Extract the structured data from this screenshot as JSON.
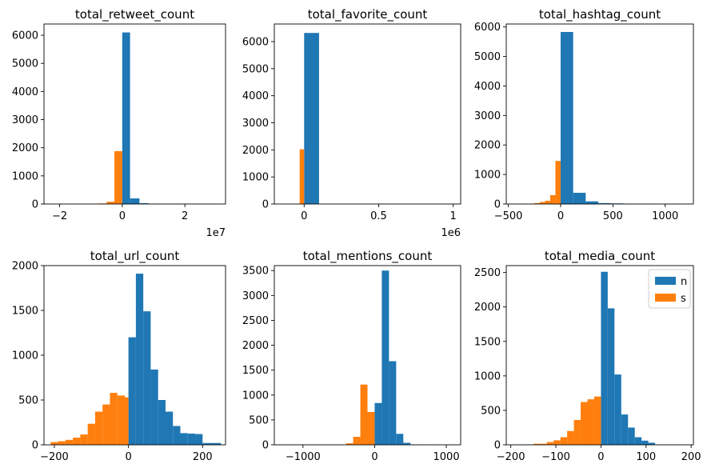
{
  "colors": {
    "n": "#1f77b4",
    "s": "#ff7f0e"
  },
  "legend": {
    "placement": "upper right",
    "entries": [
      "n",
      "s"
    ]
  },
  "chart_data": [
    {
      "type": "histogram",
      "title": "total_retweet_count",
      "xlim": [
        -2.5,
        3.3
      ],
      "ylim": [
        0,
        6400
      ],
      "xticks": [
        -2,
        0,
        2
      ],
      "yticks": [
        0,
        1000,
        2000,
        3000,
        4000,
        5000,
        6000
      ],
      "offset_text": "1e7",
      "series": [
        {
          "name": "n",
          "bins": [
            [
              0,
              0.25,
              6100
            ],
            [
              0.25,
              0.55,
              200
            ],
            [
              0.55,
              0.85,
              30
            ],
            [
              0.85,
              1.15,
              10
            ],
            [
              1.15,
              3.0,
              2
            ]
          ]
        },
        {
          "name": "s",
          "bins": [
            [
              -1.0,
              -0.75,
              5
            ],
            [
              -0.75,
              -0.5,
              20
            ],
            [
              -0.5,
              -0.25,
              80
            ],
            [
              -0.25,
              0,
              1880
            ]
          ]
        }
      ]
    },
    {
      "type": "histogram",
      "title": "total_favorite_count",
      "xlim": [
        -0.2,
        1.05
      ],
      "ylim": [
        0,
        6650
      ],
      "xticks": [
        0,
        0.5,
        1
      ],
      "yticks": [
        0,
        1000,
        2000,
        3000,
        4000,
        5000,
        6000
      ],
      "offset_text": "1e6",
      "series": [
        {
          "name": "n",
          "bins": [
            [
              0,
              0.1,
              6320
            ],
            [
              0.1,
              1.0,
              1
            ]
          ]
        },
        {
          "name": "s",
          "bins": [
            [
              -0.03,
              0,
              2020
            ]
          ]
        }
      ]
    },
    {
      "type": "histogram",
      "title": "total_hashtag_count",
      "xlim": [
        -520,
        1270
      ],
      "ylim": [
        0,
        6100
      ],
      "xticks": [
        -500,
        0,
        500,
        1000
      ],
      "yticks": [
        0,
        1000,
        2000,
        3000,
        4000,
        5000,
        6000
      ],
      "offset_text": "",
      "series": [
        {
          "name": "n",
          "bins": [
            [
              0,
              120,
              5830
            ],
            [
              120,
              240,
              380
            ],
            [
              240,
              360,
              90
            ],
            [
              360,
              480,
              30
            ],
            [
              480,
              600,
              20
            ],
            [
              600,
              720,
              5
            ],
            [
              720,
              1200,
              2
            ]
          ]
        },
        {
          "name": "s",
          "bins": [
            [
              -400,
              -250,
              5
            ],
            [
              -250,
              -200,
              30
            ],
            [
              -200,
              -150,
              70
            ],
            [
              -150,
              -100,
              110
            ],
            [
              -100,
              -50,
              300
            ],
            [
              -50,
              0,
              1460
            ]
          ]
        }
      ]
    },
    {
      "type": "histogram",
      "title": "total_url_count",
      "xlim": [
        -228,
        262
      ],
      "ylim": [
        0,
        2000
      ],
      "xticks": [
        -200,
        0,
        200
      ],
      "yticks": [
        0,
        500,
        1000,
        1500,
        2000
      ],
      "offset_text": "",
      "series": [
        {
          "name": "n",
          "bins": [
            [
              0,
              20,
              1200
            ],
            [
              20,
              40,
              1910
            ],
            [
              40,
              60,
              1490
            ],
            [
              60,
              80,
              840
            ],
            [
              80,
              100,
              500
            ],
            [
              100,
              120,
              370
            ],
            [
              120,
              140,
              210
            ],
            [
              140,
              160,
              130
            ],
            [
              160,
              180,
              125
            ],
            [
              180,
              200,
              120
            ],
            [
              200,
              250,
              20
            ]
          ]
        },
        {
          "name": "s",
          "bins": [
            [
              -210,
              -190,
              30
            ],
            [
              -190,
              -170,
              40
            ],
            [
              -170,
              -150,
              55
            ],
            [
              -150,
              -130,
              80
            ],
            [
              -130,
              -110,
              115
            ],
            [
              -110,
              -90,
              235
            ],
            [
              -90,
              -70,
              370
            ],
            [
              -70,
              -50,
              450
            ],
            [
              -50,
              -30,
              580
            ],
            [
              -30,
              -10,
              550
            ],
            [
              -10,
              0,
              530
            ]
          ]
        }
      ]
    },
    {
      "type": "histogram",
      "title": "total_mentions_count",
      "xlim": [
        -1400,
        1200
      ],
      "ylim": [
        0,
        3600
      ],
      "xticks": [
        -1000,
        0,
        1000
      ],
      "yticks": [
        0,
        500,
        1000,
        1500,
        2000,
        2500,
        3000,
        3500
      ],
      "offset_text": "",
      "series": [
        {
          "name": "n",
          "bins": [
            [
              0,
              100,
              840
            ],
            [
              100,
              200,
              3500
            ],
            [
              200,
              300,
              1680
            ],
            [
              300,
              400,
              220
            ],
            [
              400,
              500,
              40
            ],
            [
              500,
              700,
              8
            ]
          ]
        },
        {
          "name": "s",
          "bins": [
            [
              -1200,
              -400,
              2
            ],
            [
              -400,
              -300,
              30
            ],
            [
              -300,
              -200,
              160
            ],
            [
              -200,
              -100,
              1210
            ],
            [
              -100,
              0,
              660
            ]
          ]
        }
      ]
    },
    {
      "type": "histogram",
      "title": "total_media_count",
      "xlim": [
        -210,
        205
      ],
      "ylim": [
        0,
        2600
      ],
      "xticks": [
        -200,
        -100,
        0,
        100,
        200
      ],
      "yticks": [
        0,
        500,
        1000,
        1500,
        2000,
        2500
      ],
      "offset_text": "",
      "series": [
        {
          "name": "n",
          "bins": [
            [
              0,
              15,
              2510
            ],
            [
              15,
              30,
              1980
            ],
            [
              30,
              45,
              1020
            ],
            [
              45,
              60,
              440
            ],
            [
              60,
              75,
              250
            ],
            [
              75,
              90,
              110
            ],
            [
              90,
              105,
              60
            ],
            [
              105,
              120,
              30
            ],
            [
              120,
              180,
              5
            ]
          ]
        },
        {
          "name": "s",
          "bins": [
            [
              -150,
              -120,
              15
            ],
            [
              -120,
              -105,
              40
            ],
            [
              -105,
              -90,
              65
            ],
            [
              -90,
              -75,
              110
            ],
            [
              -75,
              -60,
              200
            ],
            [
              -60,
              -45,
              360
            ],
            [
              -45,
              -30,
              620
            ],
            [
              -30,
              -15,
              660
            ],
            [
              -15,
              0,
              700
            ]
          ]
        }
      ]
    }
  ]
}
